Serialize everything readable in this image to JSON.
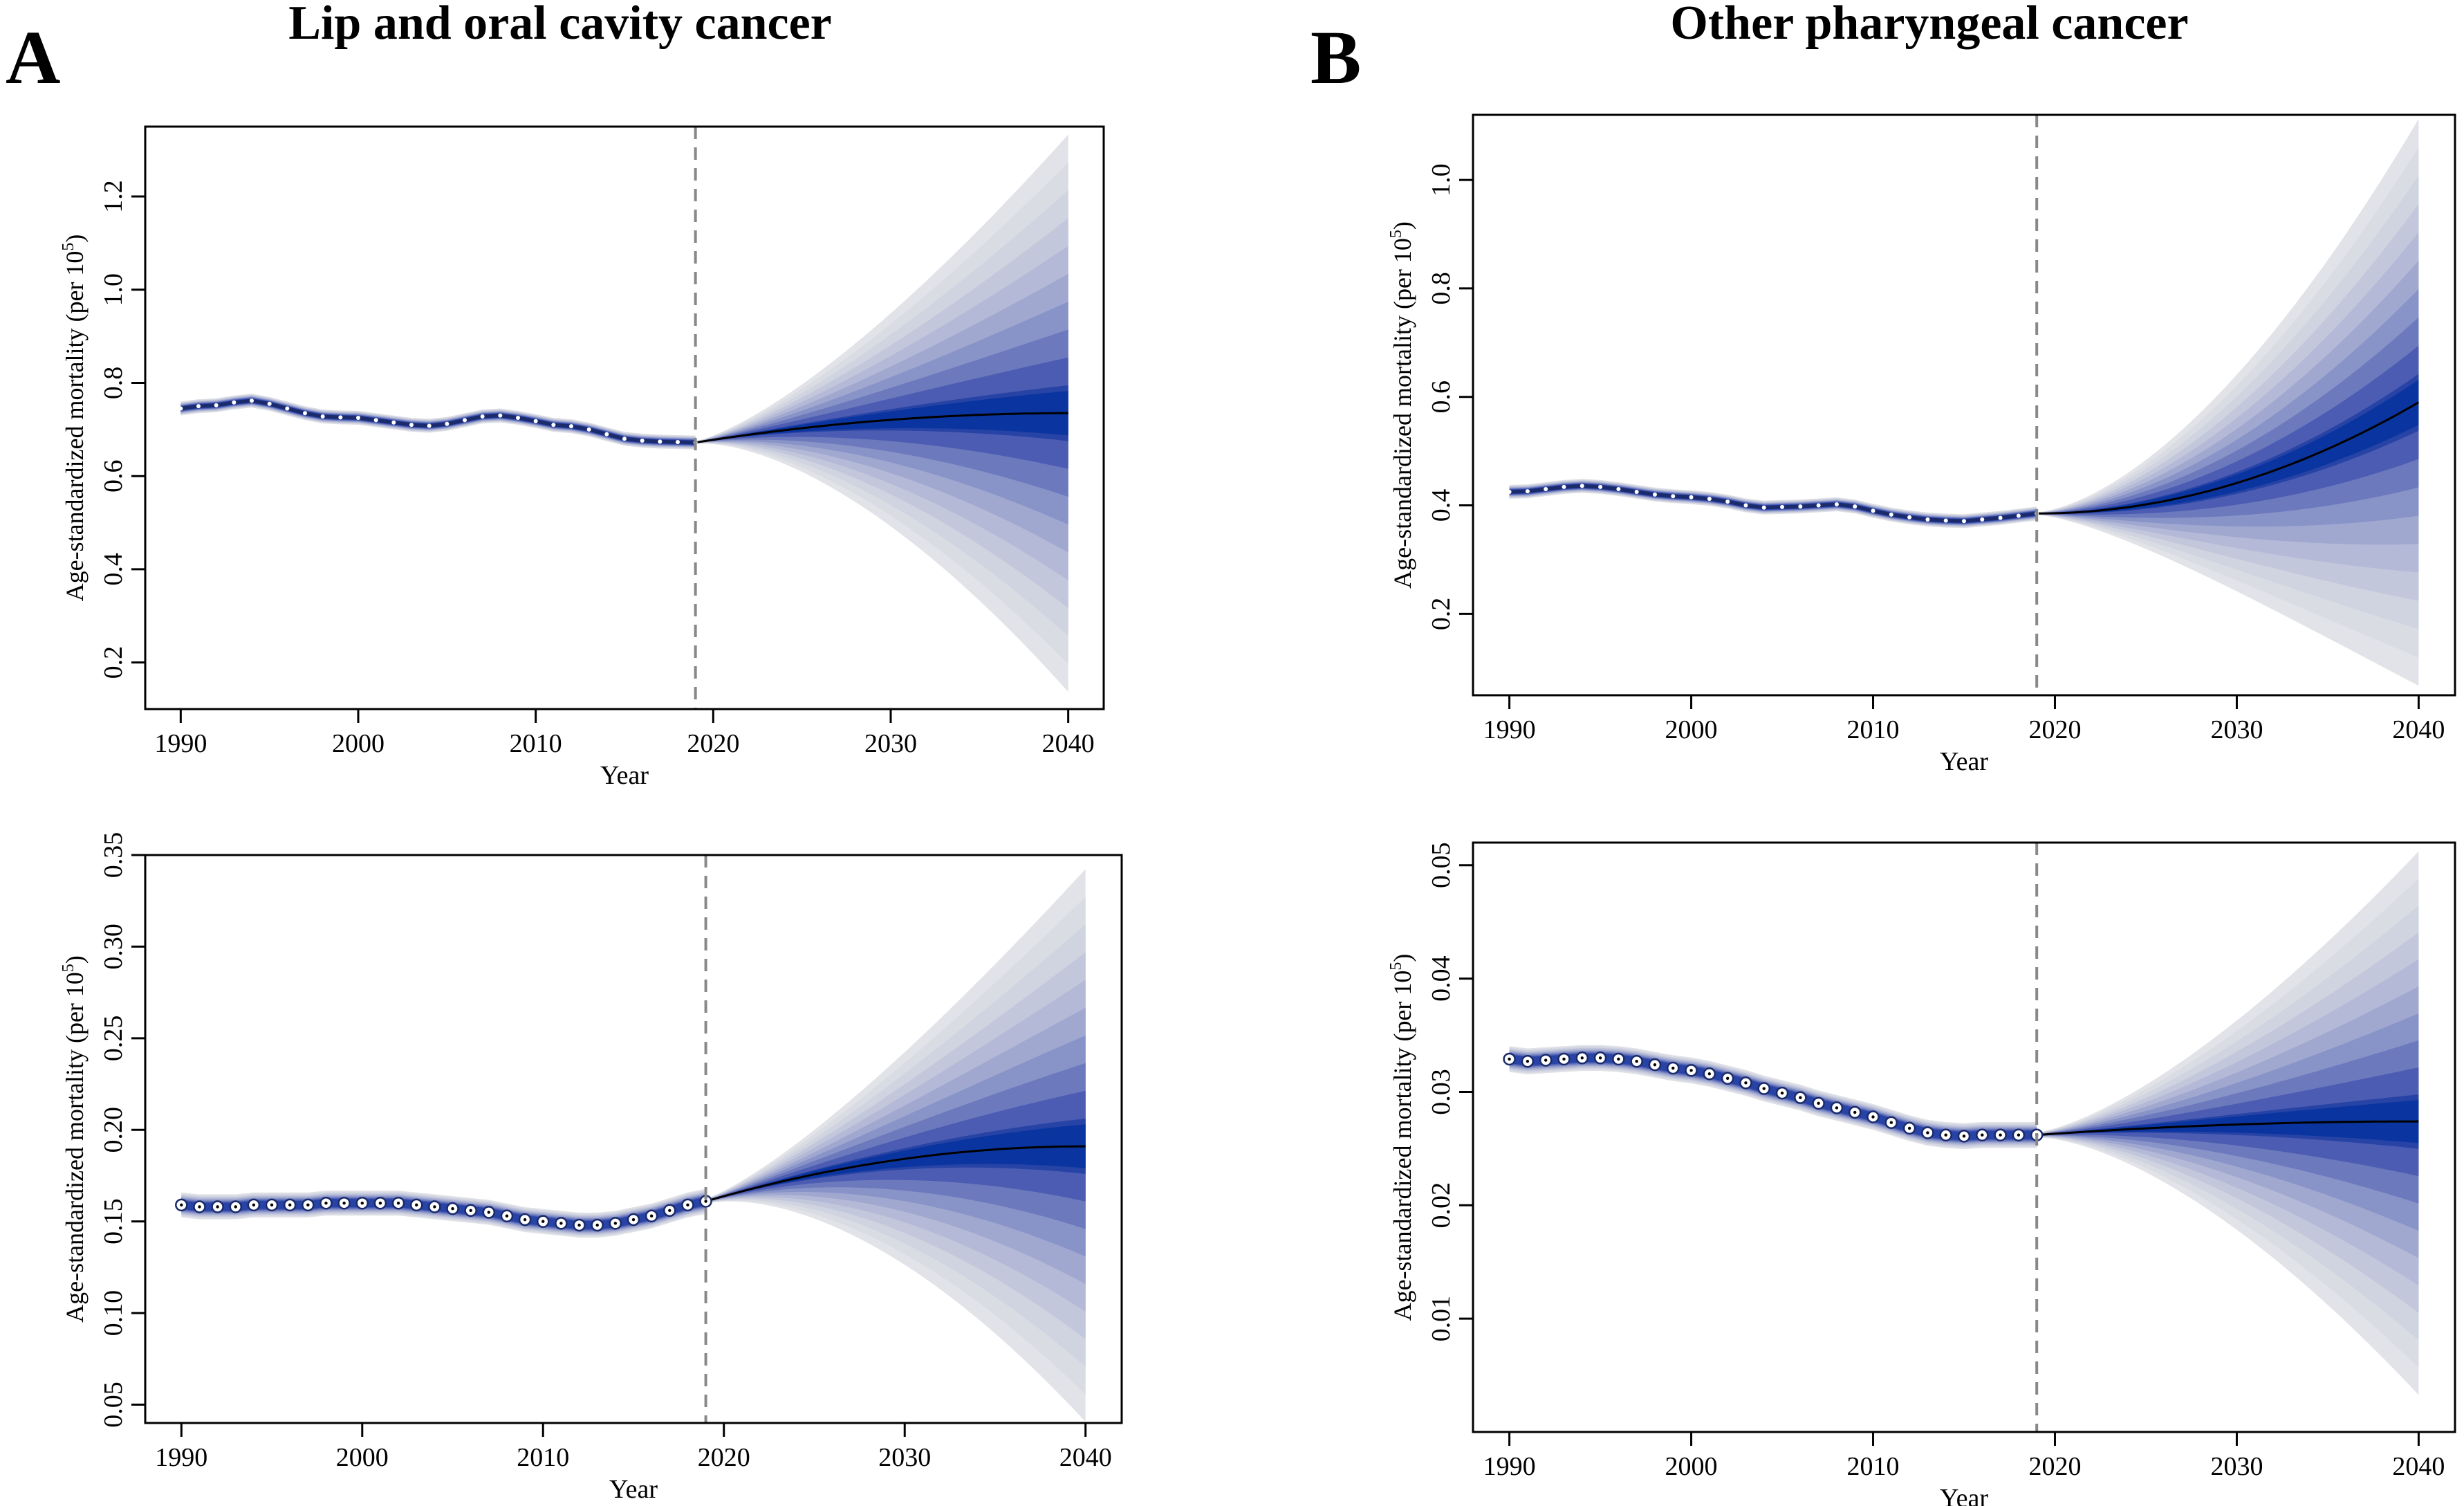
{
  "figure": {
    "panel_a_letter": "A",
    "panel_a_title": "Lip and oral cavity cancer",
    "panel_b_letter": "B",
    "panel_b_title": "Other pharyngeal cancer"
  },
  "chart_data": [
    {
      "id": "A-top",
      "type": "area",
      "title": "",
      "xlabel": "Year",
      "ylabel_main": "Age-standardized mortality (per 10",
      "ylabel_sup": "5",
      "ylabel_end": ")",
      "xlim": [
        1988,
        2042
      ],
      "ylim": [
        0.1,
        1.35
      ],
      "xticks": [
        1990,
        2000,
        2010,
        2020,
        2030,
        2040
      ],
      "yticks": [
        "0.2",
        "0.4",
        "0.6",
        "0.8",
        "1.0",
        "1.2"
      ],
      "projection_start": 2019,
      "projection_end": 2040,
      "marker_style": "small",
      "observed_points": [
        0.745,
        0.75,
        0.752,
        0.758,
        0.762,
        0.755,
        0.745,
        0.735,
        0.728,
        0.726,
        0.725,
        0.72,
        0.715,
        0.71,
        0.708,
        0.712,
        0.72,
        0.728,
        0.73,
        0.725,
        0.718,
        0.71,
        0.707,
        0.7,
        0.69,
        0.68,
        0.676,
        0.674,
        0.673,
        0.672
      ],
      "projection_mean_end": 0.735,
      "projection_mean_shape": "concave",
      "projection_interval_upper_end": 1.33,
      "projection_interval_lower_end": 0.14,
      "band_levels": 10,
      "vertical_line_year": 2019
    },
    {
      "id": "A-bottom",
      "type": "area",
      "title": "",
      "xlabel": "Year",
      "ylabel_main": "Age-standardized mortality (per 10",
      "ylabel_sup": "5",
      "ylabel_end": ")",
      "xlim": [
        1988,
        2042
      ],
      "ylim": [
        0.04,
        0.35
      ],
      "xticks": [
        1990,
        2000,
        2010,
        2020,
        2030,
        2040
      ],
      "yticks": [
        "0.05",
        "0.10",
        "0.15",
        "0.20",
        "0.25",
        "0.30",
        "0.35"
      ],
      "projection_start": 2019,
      "projection_end": 2040,
      "marker_style": "circle",
      "observed_points": [
        0.159,
        0.158,
        0.158,
        0.158,
        0.159,
        0.159,
        0.159,
        0.159,
        0.16,
        0.16,
        0.16,
        0.16,
        0.16,
        0.159,
        0.158,
        0.157,
        0.156,
        0.155,
        0.153,
        0.151,
        0.15,
        0.149,
        0.148,
        0.148,
        0.149,
        0.151,
        0.153,
        0.156,
        0.159,
        0.161
      ],
      "projection_mean_end": 0.191,
      "projection_mean_shape": "concave",
      "projection_interval_upper_end": 0.341,
      "projection_interval_lower_end": 0.042,
      "band_levels": 10,
      "vertical_line_year": 2019
    },
    {
      "id": "B-top",
      "type": "area",
      "title": "",
      "xlabel": "Year",
      "ylabel_main": "Age-standardized mortality (per 10",
      "ylabel_sup": "5",
      "ylabel_end": ")",
      "xlim": [
        1988,
        2042
      ],
      "ylim": [
        0.05,
        1.12
      ],
      "xticks": [
        1990,
        2000,
        2010,
        2020,
        2030,
        2040
      ],
      "yticks": [
        "0.2",
        "0.4",
        "0.6",
        "0.8",
        "1.0"
      ],
      "projection_start": 2019,
      "projection_end": 2040,
      "marker_style": "small",
      "observed_points": [
        0.425,
        0.426,
        0.43,
        0.434,
        0.436,
        0.434,
        0.43,
        0.425,
        0.42,
        0.417,
        0.415,
        0.412,
        0.407,
        0.4,
        0.396,
        0.397,
        0.398,
        0.4,
        0.402,
        0.398,
        0.39,
        0.383,
        0.378,
        0.374,
        0.372,
        0.371,
        0.374,
        0.377,
        0.381,
        0.385
      ],
      "projection_mean_end": 0.59,
      "projection_mean_shape": "convex",
      "projection_interval_upper_end": 1.11,
      "projection_interval_lower_end": 0.07,
      "band_levels": 10,
      "vertical_line_year": 2019
    },
    {
      "id": "B-bottom",
      "type": "area",
      "title": "",
      "xlabel": "Year",
      "ylabel_main": "Age-standardized mortality (per 10",
      "ylabel_sup": "5",
      "ylabel_end": ")",
      "xlim": [
        1988,
        2042
      ],
      "ylim": [
        0.0,
        0.052
      ],
      "xticks": [
        1990,
        2000,
        2010,
        2020,
        2030,
        2040
      ],
      "yticks": [
        "0.01",
        "0.02",
        "0.03",
        "0.04",
        "0.05"
      ],
      "projection_start": 2019,
      "projection_end": 2040,
      "marker_style": "circle",
      "observed_points": [
        0.0329,
        0.0327,
        0.0328,
        0.0329,
        0.033,
        0.033,
        0.0329,
        0.0327,
        0.0324,
        0.0321,
        0.0319,
        0.0316,
        0.0312,
        0.0308,
        0.0303,
        0.0299,
        0.0295,
        0.029,
        0.0286,
        0.0282,
        0.0278,
        0.0273,
        0.0268,
        0.0264,
        0.0262,
        0.0261,
        0.0262,
        0.0262,
        0.0262,
        0.0262
      ],
      "projection_mean_end": 0.0274,
      "projection_mean_shape": "concave",
      "projection_interval_upper_end": 0.051,
      "projection_interval_lower_end": 0.0035,
      "band_levels": 10,
      "vertical_line_year": 2019
    }
  ]
}
